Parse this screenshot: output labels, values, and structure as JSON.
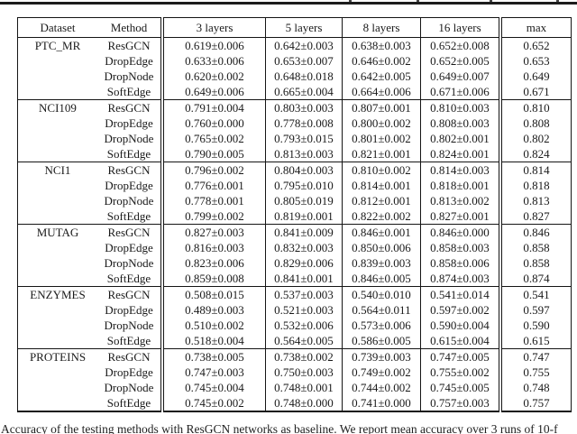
{
  "table": {
    "headers": [
      "Dataset",
      "Method",
      "3 layers",
      "5 layers",
      "8 layers",
      "16 layers",
      "max"
    ],
    "groups": [
      {
        "dataset": "PTC_MR",
        "rows": [
          {
            "method": "ResGCN",
            "values": [
              "0.619±0.006",
              "0.642±0.003",
              "0.638±0.003",
              "0.652±0.008",
              "0.652"
            ],
            "bold": [
              0,
              0,
              0,
              0,
              0
            ]
          },
          {
            "method": "DropEdge",
            "values": [
              "0.633±0.006",
              "0.653±0.007",
              "0.646±0.002",
              "0.652±0.005",
              "0.653"
            ],
            "bold": [
              0,
              0,
              0,
              0,
              0
            ]
          },
          {
            "method": "DropNode",
            "values": [
              "0.620±0.002",
              "0.648±0.018",
              "0.642±0.005",
              "0.649±0.007",
              "0.649"
            ],
            "bold": [
              0,
              0,
              0,
              0,
              0
            ]
          },
          {
            "method": "SoftEdge",
            "values": [
              "0.649±0.006",
              "0.665±0.004",
              "0.664±0.006",
              "0.671±0.006",
              "0.671"
            ],
            "bold": [
              1,
              1,
              1,
              1,
              1
            ]
          }
        ]
      },
      {
        "dataset": "NCI109",
        "rows": [
          {
            "method": "ResGCN",
            "values": [
              "0.791±0.004",
              "0.803±0.003",
              "0.807±0.001",
              "0.810±0.003",
              "0.810"
            ],
            "bold": [
              1,
              0,
              0,
              0,
              0
            ]
          },
          {
            "method": "DropEdge",
            "values": [
              "0.760±0.000",
              "0.778±0.008",
              "0.800±0.002",
              "0.808±0.003",
              "0.808"
            ],
            "bold": [
              0,
              0,
              0,
              0,
              0
            ]
          },
          {
            "method": "DropNode",
            "values": [
              "0.765±0.002",
              "0.793±0.015",
              "0.801±0.002",
              "0.802±0.001",
              "0.802"
            ],
            "bold": [
              0,
              0,
              0,
              0,
              0
            ]
          },
          {
            "method": "SoftEdge",
            "values": [
              "0.790±0.005",
              "0.813±0.003",
              "0.821±0.001",
              "0.824±0.001",
              "0.824"
            ],
            "bold": [
              0,
              1,
              1,
              1,
              1
            ]
          }
        ]
      },
      {
        "dataset": "NCI1",
        "rows": [
          {
            "method": "ResGCN",
            "values": [
              "0.796±0.002",
              "0.804±0.003",
              "0.810±0.002",
              "0.814±0.003",
              "0.814"
            ],
            "bold": [
              0,
              0,
              0,
              0,
              0
            ]
          },
          {
            "method": "DropEdge",
            "values": [
              "0.776±0.001",
              "0.795±0.010",
              "0.814±0.001",
              "0.818±0.001",
              "0.818"
            ],
            "bold": [
              0,
              0,
              0,
              0,
              0
            ]
          },
          {
            "method": "DropNode",
            "values": [
              "0.778±0.001",
              "0.805±0.019",
              "0.812±0.001",
              "0.813±0.002",
              "0.813"
            ],
            "bold": [
              0,
              0,
              0,
              0,
              0
            ]
          },
          {
            "method": "SoftEdge",
            "values": [
              "0.799±0.002",
              "0.819±0.001",
              "0.822±0.002",
              "0.827±0.001",
              "0.827"
            ],
            "bold": [
              1,
              1,
              1,
              1,
              1
            ]
          }
        ]
      },
      {
        "dataset": "MUTAG",
        "rows": [
          {
            "method": "ResGCN",
            "values": [
              "0.827±0.003",
              "0.841±0.009",
              "0.846±0.001",
              "0.846±0.000",
              "0.846"
            ],
            "bold": [
              0,
              1,
              1,
              0,
              0
            ]
          },
          {
            "method": "DropEdge",
            "values": [
              "0.816±0.003",
              "0.832±0.003",
              "0.850±0.006",
              "0.858±0.003",
              "0.858"
            ],
            "bold": [
              0,
              0,
              0,
              0,
              0
            ]
          },
          {
            "method": "DropNode",
            "values": [
              "0.823±0.006",
              "0.829±0.006",
              "0.839±0.003",
              "0.858±0.006",
              "0.858"
            ],
            "bold": [
              0,
              0,
              0,
              0,
              0
            ]
          },
          {
            "method": "SoftEdge",
            "values": [
              "0.859±0.008",
              "0.841±0.001",
              "0.846±0.005",
              "0.874±0.003",
              "0.874"
            ],
            "bold": [
              1,
              1,
              1,
              1,
              1
            ]
          }
        ]
      },
      {
        "dataset": "ENZYMES",
        "rows": [
          {
            "method": "ResGCN",
            "values": [
              "0.508±0.015",
              "0.537±0.003",
              "0.540±0.010",
              "0.541±0.014",
              "0.541"
            ],
            "bold": [
              0,
              0,
              0,
              0,
              0
            ]
          },
          {
            "method": "DropEdge",
            "values": [
              "0.489±0.003",
              "0.521±0.003",
              "0.564±0.011",
              "0.597±0.002",
              "0.597"
            ],
            "bold": [
              0,
              0,
              0,
              0,
              0
            ]
          },
          {
            "method": "DropNode",
            "values": [
              "0.510±0.002",
              "0.532±0.006",
              "0.573±0.006",
              "0.590±0.004",
              "0.590"
            ],
            "bold": [
              0,
              0,
              0,
              0,
              0
            ]
          },
          {
            "method": "SoftEdge",
            "values": [
              "0.518±0.004",
              "0.564±0.005",
              "0.586±0.005",
              "0.615±0.004",
              "0.615"
            ],
            "bold": [
              1,
              1,
              1,
              1,
              1
            ]
          }
        ]
      },
      {
        "dataset": "PROTEINS",
        "rows": [
          {
            "method": "ResGCN",
            "values": [
              "0.738±0.005",
              "0.738±0.002",
              "0.739±0.003",
              "0.747±0.005",
              "0.747"
            ],
            "bold": [
              0,
              0,
              0,
              0,
              0
            ]
          },
          {
            "method": "DropEdge",
            "values": [
              "0.747±0.003",
              "0.750±0.003",
              "0.749±0.002",
              "0.755±0.002",
              "0.755"
            ],
            "bold": [
              1,
              1,
              1,
              0,
              0
            ]
          },
          {
            "method": "DropNode",
            "values": [
              "0.745±0.004",
              "0.748±0.001",
              "0.744±0.002",
              "0.745±0.005",
              "0.748"
            ],
            "bold": [
              0,
              0,
              0,
              0,
              0
            ]
          },
          {
            "method": "SoftEdge",
            "values": [
              "0.745±0.002",
              "0.748±0.000",
              "0.741±0.000",
              "0.757±0.003",
              "0.757"
            ],
            "bold": [
              0,
              0,
              0,
              1,
              1
            ]
          }
        ]
      }
    ]
  },
  "caption": {
    "text": "Accuracy of the testing methods with ResGCN networks as baseline. We report mean accuracy over 3 runs of 10-f"
  }
}
